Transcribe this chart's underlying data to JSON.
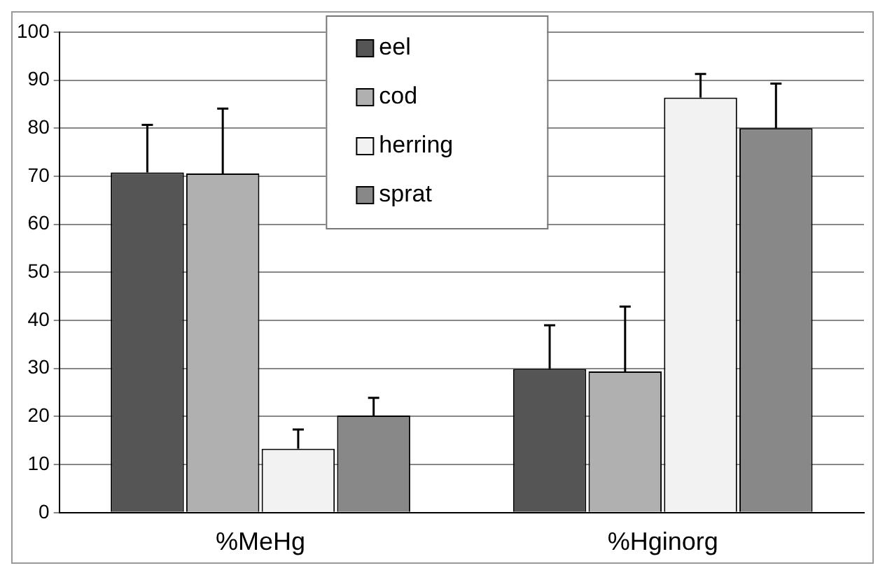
{
  "chart_data": {
    "type": "bar",
    "categories": [
      "%MeHg",
      "%Hginorg"
    ],
    "series": [
      {
        "name": "eel",
        "color": "#555555",
        "values": [
          70.8,
          29.9
        ],
        "errors": [
          [
            70.8,
            80.7
          ],
          [
            29.9,
            39.0
          ]
        ]
      },
      {
        "name": "cod",
        "color": "#b0b0b0",
        "values": [
          70.6,
          29.4
        ],
        "errors": [
          [
            70.6,
            84.1
          ],
          [
            29.4,
            42.9
          ]
        ]
      },
      {
        "name": "herring",
        "color": "#f2f2f2",
        "values": [
          13.3,
          86.4
        ],
        "errors": [
          [
            13.3,
            17.3
          ],
          [
            86.4,
            91.3
          ]
        ]
      },
      {
        "name": "sprat",
        "color": "#888888",
        "values": [
          20.2,
          80.0
        ],
        "errors": [
          [
            20.2,
            23.9
          ],
          [
            80.0,
            89.3
          ]
        ]
      }
    ],
    "ylim": [
      0,
      100
    ],
    "yticks": [
      0,
      10,
      20,
      30,
      40,
      50,
      60,
      70,
      80,
      90,
      100
    ],
    "grid": "y",
    "legend": "top"
  }
}
